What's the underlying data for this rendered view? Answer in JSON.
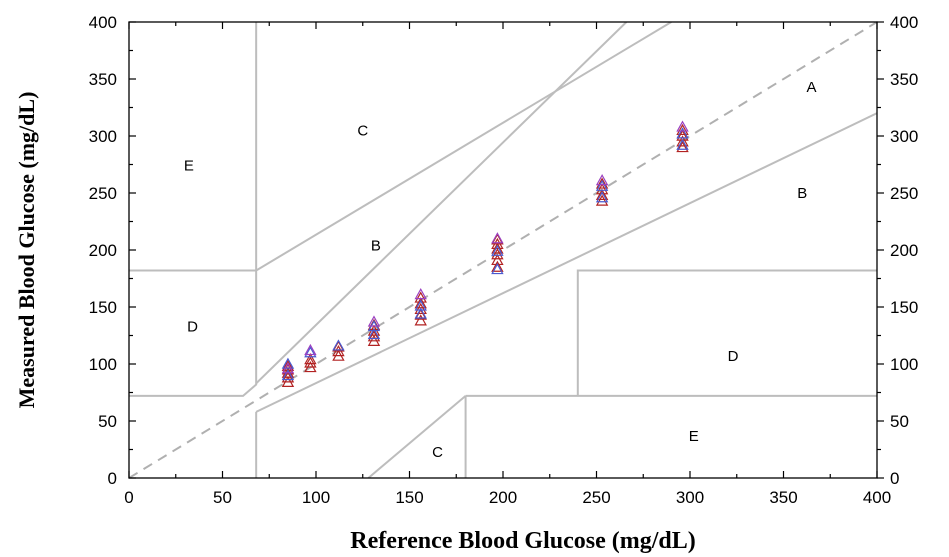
{
  "chart_data": {
    "type": "scatter",
    "title": "",
    "xlabel": "Reference Blood Glucose (mg/dL)",
    "ylabel": "Measured Blood Glucose (mg/dL)",
    "xlim": [
      0,
      400
    ],
    "ylim": [
      0,
      400
    ],
    "x_ticks": [
      "0",
      "50",
      "100",
      "150",
      "200",
      "250",
      "300",
      "350",
      "400"
    ],
    "y_ticks": [
      "0",
      "50",
      "100",
      "150",
      "200",
      "250",
      "300",
      "350",
      "400"
    ],
    "right_y_ticks": [
      "0",
      "50",
      "100",
      "150",
      "200",
      "250",
      "300",
      "350",
      "400"
    ],
    "grid": false,
    "legend": "none",
    "reference_line": {
      "style": "dashed",
      "points": [
        [
          0,
          0
        ],
        [
          400,
          400
        ]
      ],
      "color": "#b0b0b0"
    },
    "zone_boundaries": [
      [
        [
          0,
          72
        ],
        [
          61,
          72
        ],
        [
          68,
          82
        ],
        [
          68,
          400
        ]
      ],
      [
        [
          68,
          182
        ],
        [
          0,
          182
        ]
      ],
      [
        [
          68,
          182
        ],
        [
          290,
          400
        ]
      ],
      [
        [
          68,
          83
        ],
        [
          266,
          400
        ]
      ],
      [
        [
          68,
          58
        ],
        [
          68,
          0
        ]
      ],
      [
        [
          68,
          58
        ],
        [
          400,
          320
        ]
      ],
      [
        [
          128,
          0
        ],
        [
          180,
          72
        ]
      ],
      [
        [
          180,
          72
        ],
        [
          180,
          0
        ]
      ],
      [
        [
          180,
          72
        ],
        [
          400,
          72
        ]
      ],
      [
        [
          240,
          72
        ],
        [
          240,
          182
        ],
        [
          400,
          182
        ]
      ]
    ],
    "zone_labels": [
      {
        "text": "A",
        "x": 365,
        "y": 343
      },
      {
        "text": "B",
        "x": 360,
        "y": 250
      },
      {
        "text": "B",
        "x": 132,
        "y": 204
      },
      {
        "text": "C",
        "x": 125,
        "y": 305
      },
      {
        "text": "C",
        "x": 165,
        "y": 23
      },
      {
        "text": "D",
        "x": 34,
        "y": 133
      },
      {
        "text": "D",
        "x": 323,
        "y": 107
      },
      {
        "text": "E",
        "x": 32,
        "y": 274
      },
      {
        "text": "E",
        "x": 302,
        "y": 37
      }
    ],
    "marker": "triangle",
    "series": [
      {
        "color": "#b22222",
        "x": [
          85,
          85,
          85,
          85,
          85,
          97,
          97,
          97,
          112,
          112,
          112,
          131,
          131,
          131,
          131,
          156,
          156,
          156,
          156,
          156,
          197,
          197,
          197,
          197,
          197,
          197,
          253,
          253,
          253,
          253,
          296,
          296,
          296,
          296
        ],
        "y": [
          84,
          88,
          92,
          95,
          98,
          97,
          101,
          104,
          107,
          111,
          115,
          120,
          124,
          129,
          134,
          138,
          143,
          148,
          153,
          158,
          185,
          191,
          196,
          201,
          205,
          209,
          243,
          248,
          253,
          258,
          290,
          295,
          300,
          305
        ]
      },
      {
        "color": "#4a5ad0",
        "x": [
          85,
          85,
          97,
          112,
          131,
          131,
          156,
          156,
          197,
          197,
          253,
          253,
          296,
          296
        ],
        "y": [
          90,
          100,
          110,
          116,
          126,
          133,
          144,
          151,
          183,
          199,
          246,
          256,
          292,
          302
        ]
      },
      {
        "color": "#9a3fc0",
        "x": [
          85,
          97,
          131,
          156,
          197,
          253,
          296
        ],
        "y": [
          96,
          112,
          137,
          161,
          210,
          261,
          308
        ]
      }
    ]
  }
}
